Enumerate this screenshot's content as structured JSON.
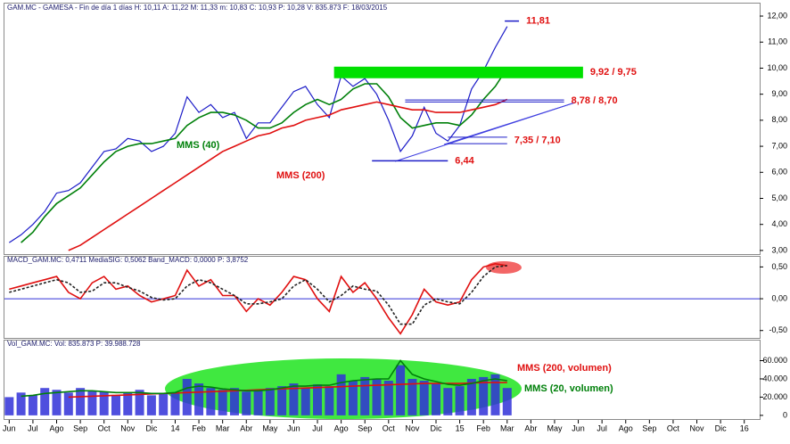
{
  "chart_data": [
    {
      "type": "line",
      "header": "GAM.MC - GAMESA - Fin de día 1 días  H: 10,11  A: 11,22  M: 11,33  m: 10,83  C: 10,93  P: 10,28  V: 835.873  F: 18/03/2015",
      "x": [
        0,
        0.5,
        1,
        1.5,
        2,
        2.5,
        3,
        3.5,
        4,
        4.5,
        5,
        5.5,
        6,
        6.5,
        7,
        7.5,
        8,
        8.5,
        9,
        9.5,
        10,
        10.5,
        11,
        11.5,
        12,
        12.5,
        13,
        13.5,
        14,
        14.5,
        15,
        15.5,
        16,
        16.5,
        17,
        17.5,
        18,
        18.5,
        19,
        19.5,
        20,
        20.5,
        21
      ],
      "series": [
        {
          "name": "GAM.MC",
          "color": "#1c1cc8",
          "values": [
            3.3,
            3.6,
            4.0,
            4.5,
            5.2,
            5.3,
            5.6,
            6.2,
            6.8,
            6.9,
            7.3,
            7.2,
            6.8,
            7.0,
            7.5,
            8.9,
            8.3,
            8.6,
            8.1,
            8.3,
            7.3,
            7.9,
            7.9,
            8.5,
            9.1,
            9.3,
            8.6,
            8.1,
            9.7,
            9.3,
            9.6,
            9.0,
            8.0,
            6.8,
            7.4,
            8.5,
            7.5,
            7.2,
            7.8,
            9.2,
            9.9,
            10.8,
            11.6
          ]
        },
        {
          "name": "MMS (40)",
          "color": "#00800a",
          "values": [
            null,
            3.3,
            3.7,
            4.3,
            4.8,
            5.1,
            5.4,
            5.9,
            6.4,
            6.8,
            7.0,
            7.1,
            7.1,
            7.2,
            7.3,
            7.8,
            8.1,
            8.3,
            8.3,
            8.2,
            8.0,
            7.7,
            7.7,
            7.9,
            8.3,
            8.6,
            8.8,
            8.6,
            8.8,
            9.2,
            9.4,
            9.4,
            8.9,
            8.1,
            7.7,
            7.8,
            7.9,
            7.9,
            7.8,
            8.2,
            8.8,
            9.3,
            10.0
          ]
        },
        {
          "name": "MMS (200)",
          "color": "#e01010",
          "values": [
            null,
            null,
            null,
            null,
            null,
            3.0,
            3.2,
            3.5,
            3.8,
            4.1,
            4.4,
            4.7,
            5.0,
            5.3,
            5.6,
            5.9,
            6.2,
            6.5,
            6.8,
            7.0,
            7.2,
            7.4,
            7.5,
            7.7,
            7.8,
            8.0,
            8.1,
            8.2,
            8.4,
            8.5,
            8.6,
            8.7,
            8.6,
            8.5,
            8.4,
            8.4,
            8.3,
            8.3,
            8.3,
            8.4,
            8.5,
            8.6,
            8.8
          ]
        }
      ],
      "levels": [
        {
          "label": "11,81",
          "values": [
            11.81
          ],
          "x": [
            20.9,
            21.5
          ],
          "color": "#1c1cc8"
        },
        {
          "label": "9,92 / 9,75",
          "values": [
            9.92,
            9.75
          ],
          "x": [
            13.7,
            24.2
          ],
          "color": "#00e000",
          "band": true
        },
        {
          "label": "8,78 / 8,70",
          "values": [
            8.78,
            8.7
          ],
          "x": [
            16.7,
            23.4
          ],
          "color": "#1c1cc8"
        },
        {
          "label": "7,35 / 7,10",
          "values": [
            7.35,
            7.1
          ],
          "x": [
            18.5,
            21.0
          ],
          "color": "#1c1cc8"
        },
        {
          "label": "6,44",
          "values": [
            6.44
          ],
          "x": [
            15.3,
            18.5
          ],
          "color": "#1c1cc8"
        }
      ],
      "annotations": [
        "MMS (40)",
        "MMS (200)"
      ],
      "ylim": [
        2.86,
        12.48
      ],
      "yticks": [
        {
          "value": 3,
          "label": "3,00"
        },
        {
          "value": 4,
          "label": "4,00"
        },
        {
          "value": 5,
          "label": "5,00"
        },
        {
          "value": 6,
          "label": "6,00"
        },
        {
          "value": 7,
          "label": "7,00"
        },
        {
          "value": 8,
          "label": "8,00"
        },
        {
          "value": 9,
          "label": "9,00"
        },
        {
          "value": 10,
          "label": "10,00"
        },
        {
          "value": 11,
          "label": "11,00"
        },
        {
          "value": 12,
          "label": "12,00"
        }
      ]
    },
    {
      "type": "line",
      "header": "MACD_GAM.MC: 0,4711  MediaSIG: 0,5062  Band_MACD: 0,0000  P: 3,8752",
      "x": [
        0,
        0.5,
        1,
        1.5,
        2,
        2.5,
        3,
        3.5,
        4,
        4.5,
        5,
        5.5,
        6,
        6.5,
        7,
        7.5,
        8,
        8.5,
        9,
        9.5,
        10,
        10.5,
        11,
        11.5,
        12,
        12.5,
        13,
        13.5,
        14,
        14.5,
        15,
        15.5,
        16,
        16.5,
        17,
        17.5,
        18,
        18.5,
        19,
        19.5,
        20,
        20.5,
        21
      ],
      "series": [
        {
          "name": "MACD",
          "color": "#e01010",
          "values": [
            0.15,
            0.2,
            0.25,
            0.3,
            0.35,
            0.1,
            0.0,
            0.25,
            0.35,
            0.15,
            0.2,
            0.05,
            -0.05,
            0.0,
            0.05,
            0.45,
            0.2,
            0.3,
            0.05,
            0.05,
            -0.2,
            0.0,
            -0.1,
            0.1,
            0.35,
            0.3,
            0.0,
            -0.2,
            0.35,
            0.1,
            0.25,
            0.0,
            -0.3,
            -0.55,
            -0.25,
            0.15,
            -0.05,
            -0.1,
            -0.05,
            0.3,
            0.5,
            0.55,
            0.52
          ]
        },
        {
          "name": "MediaSIG",
          "color": "#222222",
          "dash": true,
          "values": [
            0.1,
            0.15,
            0.2,
            0.25,
            0.3,
            0.25,
            0.1,
            0.12,
            0.25,
            0.25,
            0.18,
            0.12,
            0.02,
            -0.02,
            0.0,
            0.2,
            0.3,
            0.25,
            0.15,
            0.05,
            -0.08,
            -0.08,
            -0.05,
            0.0,
            0.2,
            0.3,
            0.15,
            -0.05,
            0.05,
            0.2,
            0.15,
            0.12,
            -0.1,
            -0.4,
            -0.4,
            -0.1,
            0.0,
            -0.05,
            -0.08,
            0.1,
            0.35,
            0.5,
            0.52
          ]
        }
      ],
      "ylim": [
        -0.63,
        0.66
      ],
      "yticks": [
        {
          "value": 0.5,
          "label": "0,50"
        },
        {
          "value": 0,
          "label": "0,00"
        },
        {
          "value": -0.5,
          "label": "-0,50"
        }
      ]
    },
    {
      "type": "bar",
      "header": "Vol_GAM.MC: Vol: 835.873  P: 39.988.728",
      "x": [
        0,
        0.5,
        1,
        1.5,
        2,
        2.5,
        3,
        3.5,
        4,
        4.5,
        5,
        5.5,
        6,
        6.5,
        7,
        7.5,
        8,
        8.5,
        9,
        9.5,
        10,
        10.5,
        11,
        11.5,
        12,
        12.5,
        13,
        13.5,
        14,
        14.5,
        15,
        15.5,
        16,
        16.5,
        17,
        17.5,
        18,
        18.5,
        19,
        19.5,
        20,
        20.5,
        21
      ],
      "values": [
        20000,
        25000,
        22000,
        30000,
        28000,
        25000,
        30000,
        27000,
        26000,
        22000,
        25000,
        28000,
        22000,
        24000,
        25000,
        40000,
        35000,
        30000,
        28000,
        30000,
        26000,
        27000,
        30000,
        32000,
        35000,
        30000,
        34000,
        32000,
        45000,
        38000,
        42000,
        40000,
        38000,
        55000,
        40000,
        38000,
        35000,
        30000,
        32000,
        40000,
        42000,
        45000,
        30000
      ],
      "color": "#3030d8",
      "series": [
        {
          "name": "MMS (200, volumen)",
          "color": "#e01010",
          "values": [
            null,
            null,
            null,
            null,
            null,
            20000,
            20500,
            21000,
            21500,
            22000,
            22500,
            23000,
            23500,
            24000,
            24500,
            25000,
            25500,
            26000,
            26500,
            27000,
            27500,
            28000,
            28500,
            29000,
            29500,
            30000,
            30500,
            31000,
            31500,
            32000,
            32500,
            33000,
            33500,
            34000,
            34500,
            35000,
            35000,
            35000,
            35000,
            35500,
            36000,
            36000,
            36000
          ]
        },
        {
          "name": "MMS (20, volumen)",
          "color": "#00800a",
          "values": [
            null,
            21000,
            22000,
            24000,
            25000,
            26000,
            27000,
            27000,
            26000,
            25000,
            25000,
            25000,
            24000,
            24000,
            25000,
            30000,
            32000,
            31000,
            29000,
            28000,
            27000,
            27000,
            28000,
            30000,
            32000,
            32000,
            33000,
            33000,
            36000,
            38000,
            39000,
            40000,
            40000,
            60000,
            45000,
            40000,
            37000,
            34000,
            33000,
            35000,
            38000,
            40000,
            38000
          ]
        }
      ],
      "ylim": [
        -5000,
        82000
      ],
      "yticks": [
        0,
        {
          "value": 20000,
          "label": "20.000"
        },
        {
          "value": 40000,
          "label": "40.000"
        },
        {
          "value": 60000,
          "label": "60.000"
        }
      ],
      "xlim": [
        -0.2,
        31.65
      ],
      "xticks": [
        {
          "value": 0,
          "label": "Jun"
        },
        {
          "value": 1,
          "label": "Jul"
        },
        {
          "value": 2,
          "label": "Ago"
        },
        {
          "value": 3,
          "label": "Sep"
        },
        {
          "value": 4,
          "label": "Oct"
        },
        {
          "value": 5,
          "label": "Nov"
        },
        {
          "value": 6,
          "label": "Dic"
        },
        {
          "value": 7,
          "label": "14"
        },
        {
          "value": 8,
          "label": "Feb"
        },
        {
          "value": 9,
          "label": "Mar"
        },
        {
          "value": 10,
          "label": "Abr"
        },
        {
          "value": 11,
          "label": "May"
        },
        {
          "value": 12,
          "label": "Jun"
        },
        {
          "value": 13,
          "label": "Jul"
        },
        {
          "value": 14,
          "label": "Ago"
        },
        {
          "value": 15,
          "label": "Sep"
        },
        {
          "value": 16,
          "label": "Oct"
        },
        {
          "value": 17,
          "label": "Nov"
        },
        {
          "value": 18,
          "label": "Dic"
        },
        {
          "value": 19,
          "label": "15"
        },
        {
          "value": 20,
          "label": "Feb"
        },
        {
          "value": 21,
          "label": "Mar"
        },
        {
          "value": 22,
          "label": "Abr"
        },
        {
          "value": 23,
          "label": "May"
        },
        {
          "value": 24,
          "label": "Jun"
        },
        {
          "value": 25,
          "label": "Jul"
        },
        {
          "value": 26,
          "label": "Ago"
        },
        {
          "value": 27,
          "label": "Sep"
        },
        {
          "value": 28,
          "label": "Oct"
        },
        {
          "value": 29,
          "label": "Nov"
        },
        {
          "value": 30,
          "label": "Dic"
        },
        {
          "value": 31,
          "label": "16"
        }
      ]
    }
  ]
}
